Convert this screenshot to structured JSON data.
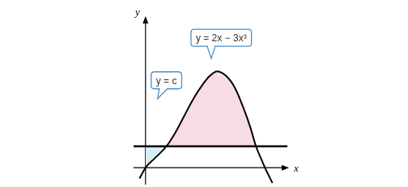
{
  "chart_data": {
    "type": "line",
    "x_label": "x",
    "y_label": "y",
    "x": [
      -0.04,
      0,
      0.06,
      0.14,
      0.2,
      0.26,
      0.32,
      0.38,
      0.43,
      0.478,
      0.54,
      0.6,
      0.66,
      0.7,
      0.74,
      0.78,
      0.8,
      0.85
    ],
    "series": [
      {
        "name": "y = 2x − 3x³",
        "color": "#000000",
        "values": [
          -0.07,
          0,
          0.06,
          0.14,
          0.23,
          0.34,
          0.45,
          0.54,
          0.6,
          0.63,
          0.6,
          0.52,
          0.38,
          0.27,
          0.14,
          0.045,
          0,
          -0.1
        ]
      }
    ],
    "hline": {
      "label": "y = c",
      "value": 0.14,
      "color": "#000000"
    },
    "xlim": [
      -0.08,
      0.95
    ],
    "ylim": [
      -0.11,
      0.98
    ],
    "tick_labels": false,
    "grid": false
  }
}
